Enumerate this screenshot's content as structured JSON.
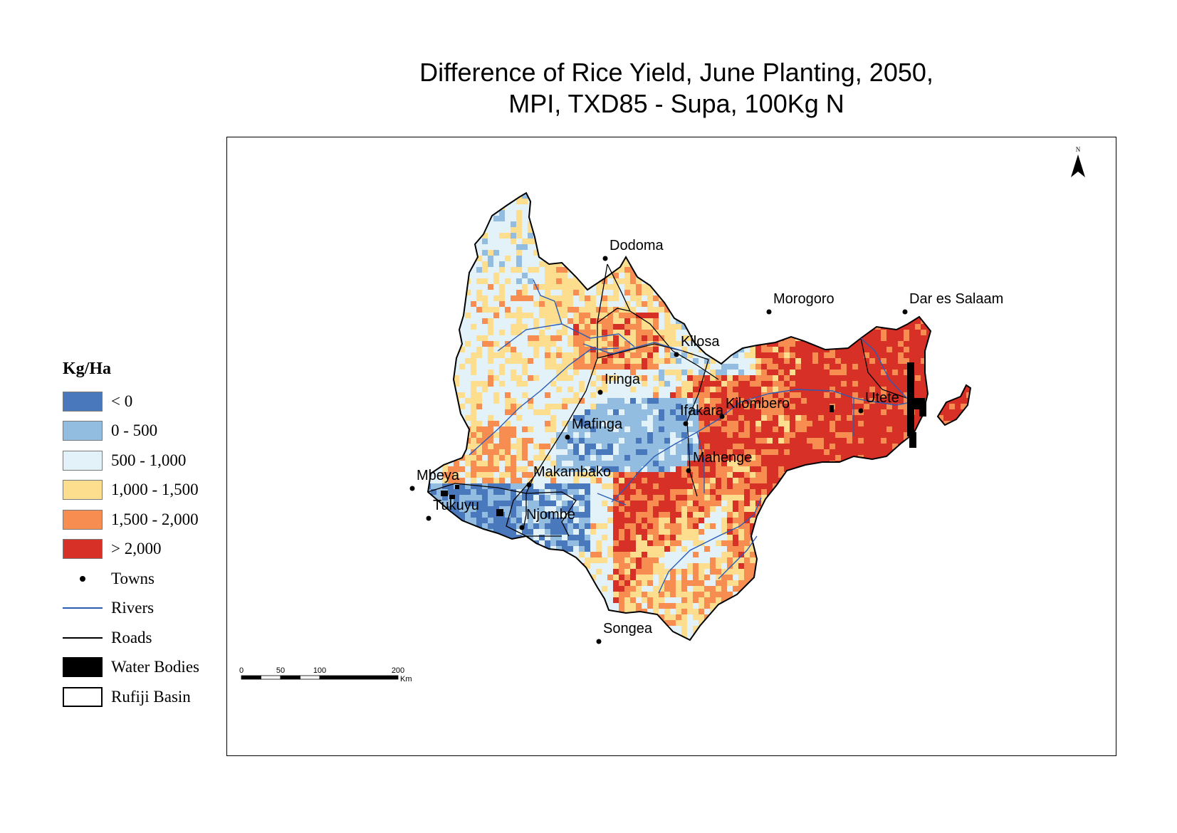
{
  "title": {
    "line1": "Difference of Rice Yield, June Planting, 2050,",
    "line2": "MPI, TXD85 - Supa, 100Kg N"
  },
  "legend": {
    "title": "Kg/Ha",
    "classes": [
      {
        "label": "< 0",
        "color": "#4a78bd"
      },
      {
        "label": "0 - 500",
        "color": "#93bde0"
      },
      {
        "label": "500 - 1,000",
        "color": "#e3f2f9"
      },
      {
        "label": "1,000 - 1,500",
        "color": "#fdde8e"
      },
      {
        "label": "1,500 - 2,000",
        "color": "#f88d52"
      },
      {
        "label": "> 2,000",
        "color": "#d73027"
      }
    ],
    "symbols": [
      {
        "label": "Towns",
        "kind": "dot"
      },
      {
        "label": "Rivers",
        "kind": "line",
        "color": "#2a5bb5"
      },
      {
        "label": "Roads",
        "kind": "line",
        "color": "#000000"
      },
      {
        "label": "Water Bodies",
        "kind": "fill",
        "color": "#000000"
      },
      {
        "label": "Rufiji Basin",
        "kind": "outline"
      }
    ]
  },
  "towns": [
    {
      "name": "Dodoma"
    },
    {
      "name": "Morogoro"
    },
    {
      "name": "Dar es Salaam"
    },
    {
      "name": "Kilosa"
    },
    {
      "name": "Iringa"
    },
    {
      "name": "Ifakara"
    },
    {
      "name": "Kilombero"
    },
    {
      "name": "Utete"
    },
    {
      "name": "Mafinga"
    },
    {
      "name": "Mahenge"
    },
    {
      "name": "Mbeya"
    },
    {
      "name": "Makambako"
    },
    {
      "name": "Tukuyu"
    },
    {
      "name": "Njombe"
    },
    {
      "name": "Songea"
    }
  ],
  "scale_bar": {
    "ticks": [
      "0",
      "50",
      "100",
      "200"
    ],
    "unit": "Km"
  },
  "north_arrow": {
    "label": "N",
    "icon": "north-arrow-icon"
  }
}
